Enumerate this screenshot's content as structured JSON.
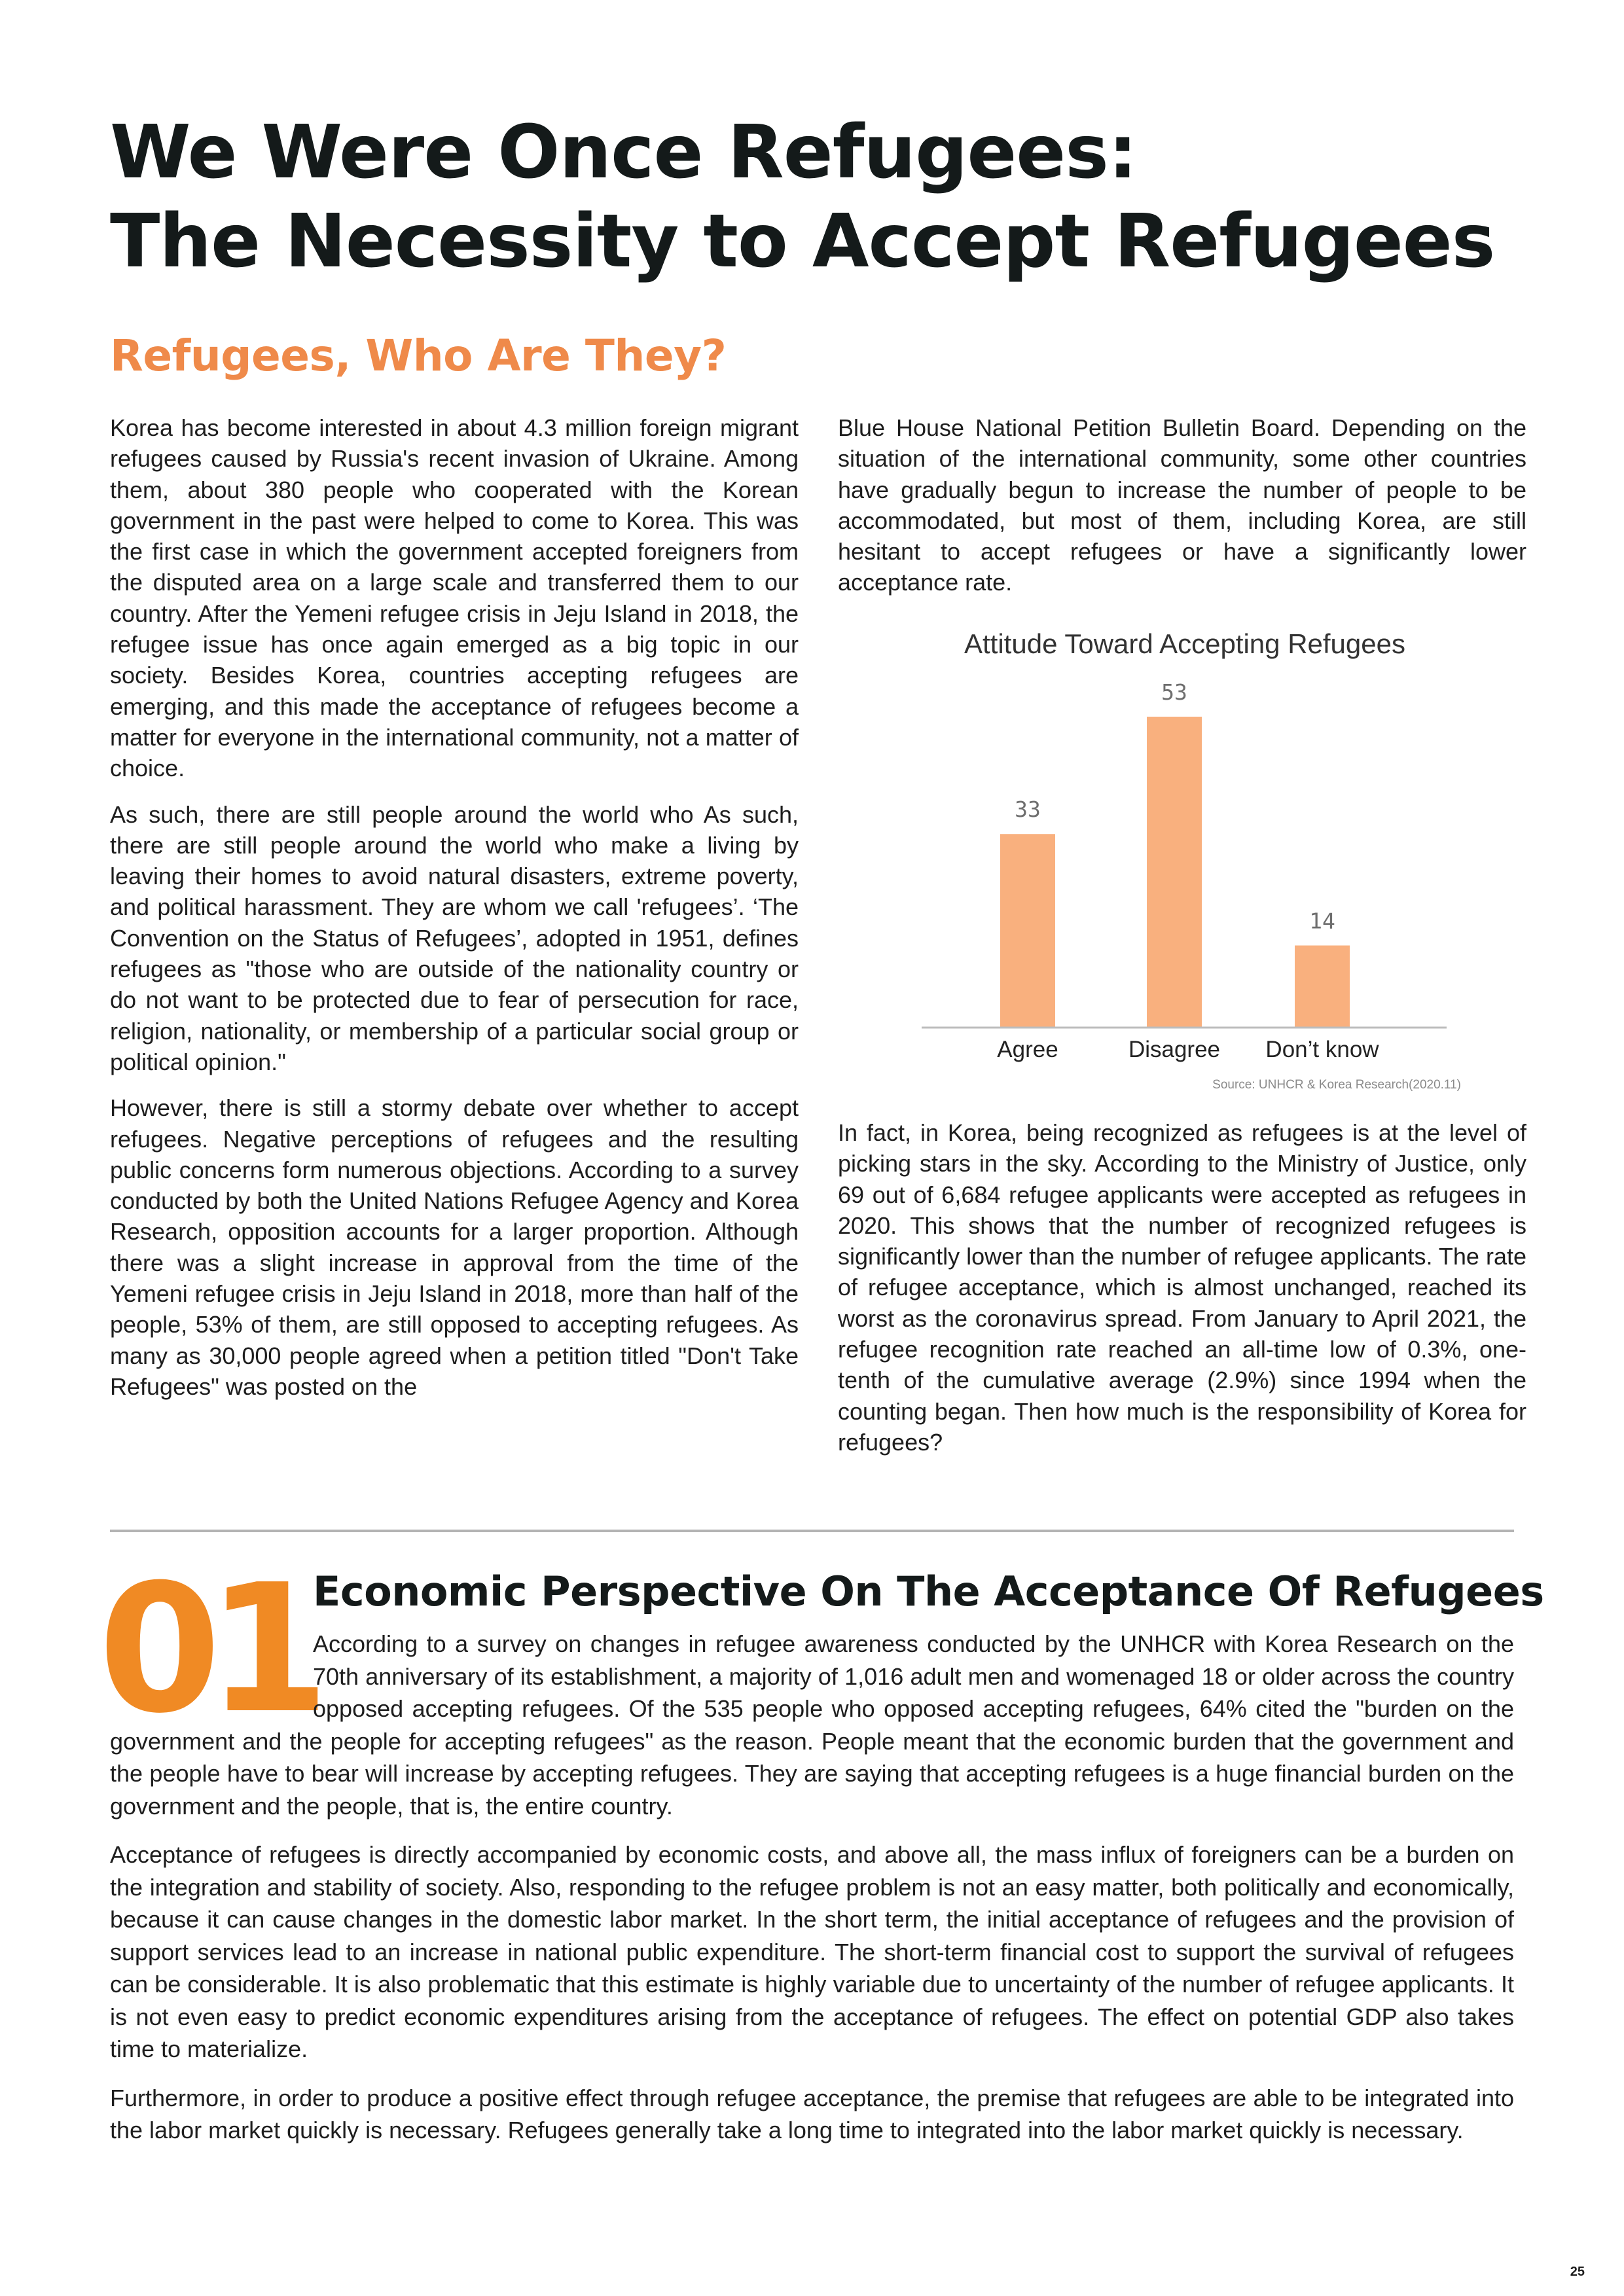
{
  "title": {
    "line1": "We Were Once Refugees:",
    "line2": "The Necessity to Accept Refugees"
  },
  "section1": {
    "heading": "Refugees, Who Are They?",
    "left_paragraphs": [
      "Korea has become interested in about 4.3 million foreign migrant refugees caused by Russia's recent invasion of Ukraine. Among them, about 380 people who cooperated with the Korean government in the past were helped to come to Korea. This was the first case in which the government accepted foreigners from the disputed area on a large scale and transferred them to our country. After the Yemeni refugee crisis in Jeju Island in 2018, the refugee issue has once again emerged as a big topic in our society. Besides Korea, countries accepting refugees are emerging, and this made the acceptance of refugees become a matter for everyone in the international community, not a matter of choice.",
      "As such, there are still people around the world who As such, there are still people around the world who make a living by leaving their homes to avoid natural disasters, extreme poverty, and political harassment. They are whom we call 'refugees’. ‘The Convention on the Status of Refugees’, adopted in 1951, defines refugees as \"those who are outside of the nationality country or do not want to be protected due to fear of persecution for race, religion, nationality, or membership of a particular social group or political opinion.\"",
      "However, there is still a stormy debate over whether to accept refugees. Negative perceptions of refugees and the resulting public concerns form numerous objections. According to a survey conducted by both the United Nations Refugee Agency and Korea Research, opposition accounts for a larger proportion. Although there was a slight increase in approval from the time of the Yemeni refugee crisis in Jeju Island in 2018, more than half of the people, 53% of them, are still opposed to accepting refugees. As many as 30,000 people agreed when a petition titled \"Don't Take Refugees\" was posted on the"
    ],
    "right_top_paragraph": "Blue House National Petition Bulletin Board. Depending on the situation of the international community, some other countries have gradually begun to increase the number of people to be accommodated, but most of them, including Korea, are still hesitant to accept refugees or have a significantly lower acceptance rate.",
    "right_bottom_paragraph": "In fact, in Korea, being recognized as refugees is at the level of picking stars in the sky. According to the Ministry of Justice, only 69 out of 6,684 refugee applicants were accepted as refugees in 2020. This shows that the number of recognized refugees is significantly lower than the number of refugee applicants. The rate of refugee acceptance, which is almost unchanged, reached its worst as the coronavirus spread. From January to April 2021, the refugee recognition rate reached an all-time low of 0.3%, one-tenth of the cumulative average (2.9%) since 1994 when the counting began. Then how much is the responsibility of Korea for refugees?"
  },
  "chart_data": {
    "type": "bar",
    "title": "Attitude Toward Accepting Refugees",
    "categories": [
      "Agree",
      "Disagree",
      "Don’t know"
    ],
    "values": [
      33,
      53,
      14
    ],
    "ylim": [
      0,
      53
    ],
    "source": "Source: UNHCR & Korea Research(2020.11)",
    "bar_color": "#f9b07e",
    "axis_color": "#bdbdbd",
    "grid": false
  },
  "section2": {
    "number": "01",
    "heading": "Economic Perspective On The Acceptance Of Refugees",
    "paragraphs": [
      "According to a survey on changes in refugee awareness conducted by the UNHCR with Korea Research on the 70th anniversary of its establishment, a majority of 1,016 adult men and womenaged 18 or older across the country opposed accepting refugees. Of the 535 people who opposed accepting refugees, 64% cited the \"burden on the government and the people for accepting refugees\" as the reason. People meant that the economic burden that the government and the people have to bear will increase by accepting refugees. They are saying that accepting refugees is a huge financial burden on the government and the people, that is, the entire country.",
      "Acceptance of refugees is directly accompanied by economic costs, and above all, the mass influx of foreigners can be a burden on the integration and stability of society. Also, responding to the refugee problem is not an easy matter, both politically and economically, because it can cause changes in the domestic labor market. In the short term, the initial acceptance of refugees and the provision of support services lead to an increase in national public expenditure. The short-term financial cost to support the survival of refugees can be considerable. It is also problematic that this estimate is highly variable due to uncertainty of the number of refugee applicants. It is not even easy to predict economic expenditures arising from the acceptance of refugees. The effect on potential GDP also takes time to materialize.",
      "Furthermore, in order to produce a positive effect through refugee acceptance, the premise that refugees are able to be integrated into the labor market quickly is necessary. Refugees generally take a long time to integrated into the labor market quickly is necessary."
    ]
  },
  "page_number": "25",
  "colors": {
    "accent_orange": "#ef8a4a",
    "number_orange": "#f08a24",
    "title_dark": "#141a1a"
  }
}
